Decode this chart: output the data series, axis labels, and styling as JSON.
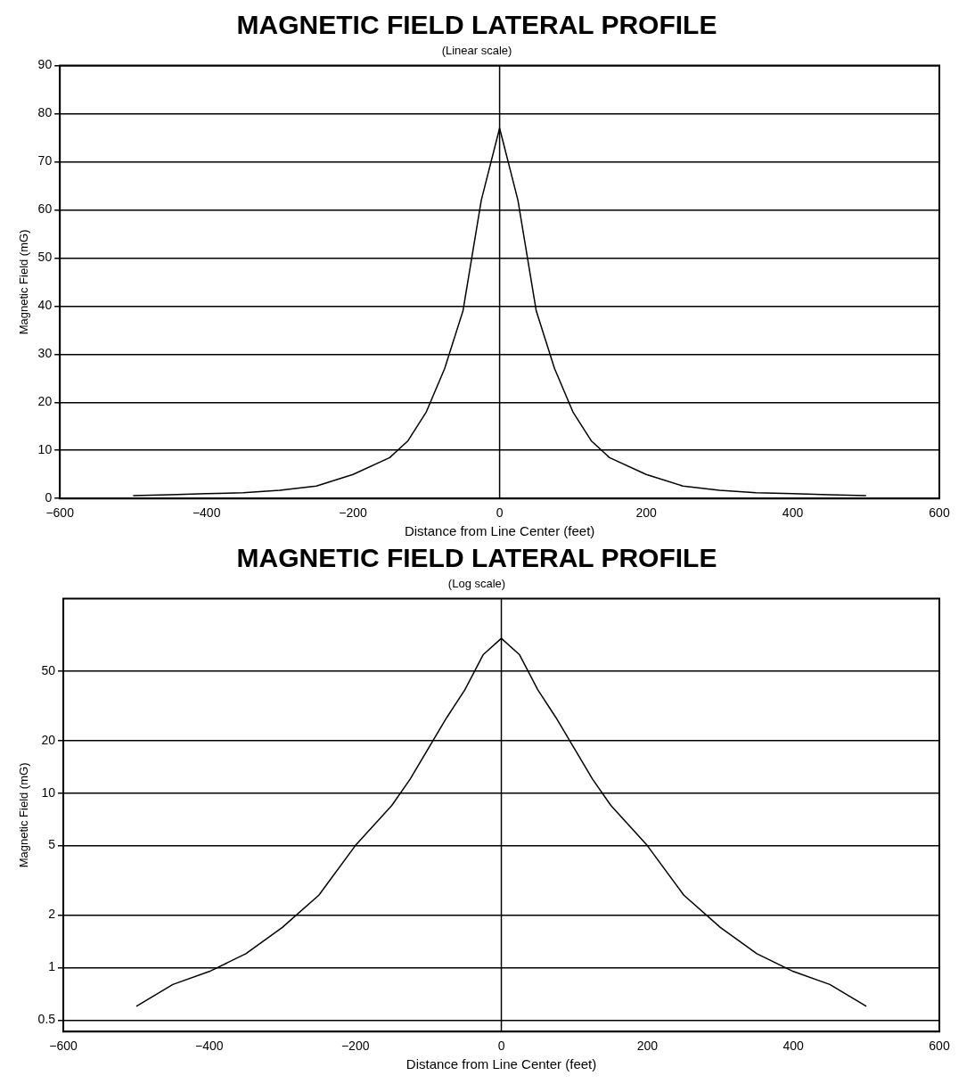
{
  "chart_data": [
    {
      "type": "line",
      "title": "MAGNETIC FIELD LATERAL PROFILE",
      "subtitle": "(Linear scale)",
      "xlabel": "Distance from Line Center (feet)",
      "ylabel": "Magnetic Field (mG)",
      "x": [
        -500,
        -450,
        -400,
        -350,
        -300,
        -250,
        -200,
        -150,
        -125,
        -100,
        -75,
        -50,
        -25,
        0,
        25,
        50,
        75,
        100,
        125,
        150,
        200,
        250,
        300,
        350,
        400,
        450,
        500
      ],
      "series": [
        {
          "color": "#000000",
          "values": [
            0.6,
            0.8,
            1,
            1.2,
            1.7,
            2.6,
            5,
            8.5,
            12,
            18,
            27,
            39,
            62,
            77,
            62,
            39,
            27,
            18,
            12,
            8.5,
            5,
            2.6,
            1.7,
            1.2,
            1,
            0.8,
            0.6
          ]
        }
      ],
      "xlim": [
        -600,
        600
      ],
      "xticks": [
        -600,
        -400,
        -200,
        0,
        200,
        400,
        600
      ],
      "ylim": [
        0,
        90
      ],
      "yticks": [
        0,
        10,
        20,
        30,
        40,
        50,
        60,
        70,
        80,
        90
      ],
      "grid": "y",
      "marker": "none",
      "line_style": "solid",
      "ref_lines": [
        {
          "axis": "x",
          "value": 0,
          "color": "#000000"
        }
      ]
    },
    {
      "type": "line",
      "title": "MAGNETIC FIELD LATERAL PROFILE",
      "subtitle": "(Log scale)",
      "xlabel": "Distance from Line Center (feet)",
      "ylabel": "Magnetic Field (mG)",
      "x": [
        -500,
        -450,
        -400,
        -350,
        -300,
        -250,
        -200,
        -150,
        -125,
        -100,
        -75,
        -50,
        -25,
        0,
        25,
        50,
        75,
        100,
        125,
        150,
        200,
        250,
        300,
        350,
        400,
        450,
        500
      ],
      "series": [
        {
          "color": "#000000",
          "values": [
            0.6,
            0.8,
            0.95,
            1.2,
            1.7,
            2.6,
            5,
            8.5,
            12,
            18,
            27,
            39,
            62,
            77,
            62,
            39,
            27,
            18,
            12,
            8.5,
            5,
            2.6,
            1.7,
            1.2,
            0.95,
            0.8,
            0.6
          ]
        }
      ],
      "xlim": [
        -600,
        600
      ],
      "xticks": [
        -600,
        -400,
        -200,
        0,
        200,
        400,
        600
      ],
      "ylim": [
        0.43,
        130
      ],
      "yticks": [
        0.5,
        1,
        2,
        5,
        10,
        20,
        50
      ],
      "log": "y",
      "grid": "y",
      "marker": "none",
      "line_style": "solid",
      "ref_lines": [
        {
          "axis": "x",
          "value": 0,
          "color": "#000000"
        }
      ]
    }
  ]
}
